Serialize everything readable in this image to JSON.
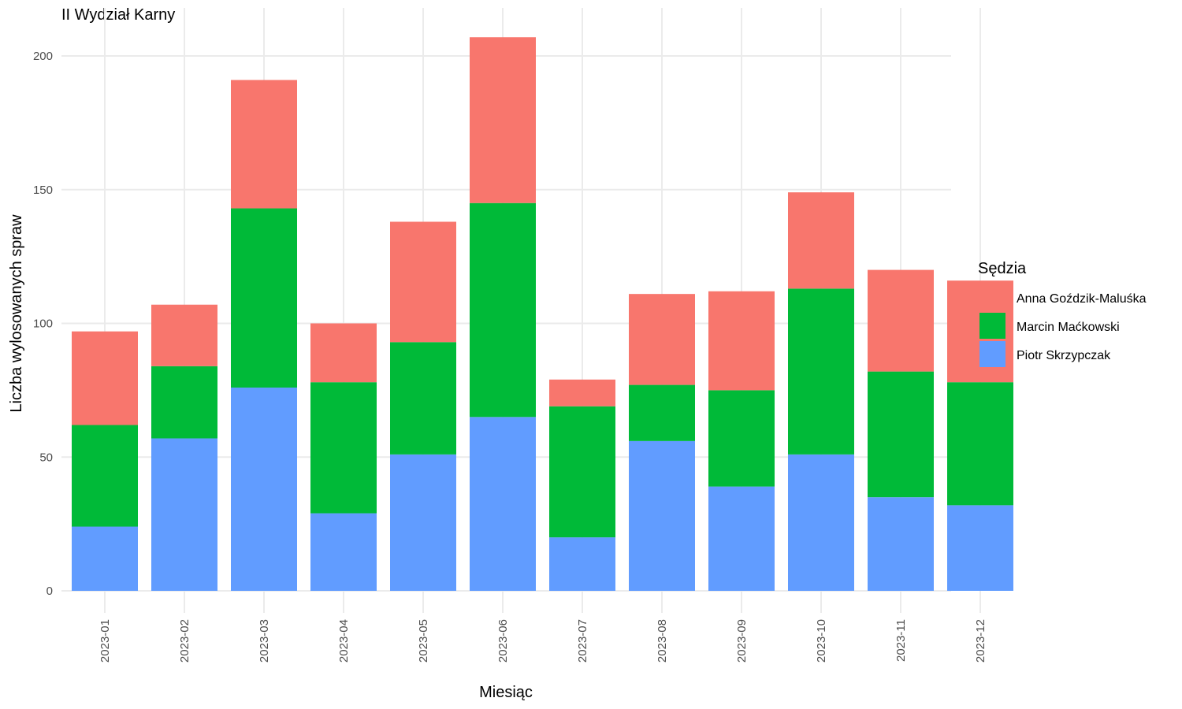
{
  "chart_data": {
    "type": "bar",
    "stacked": true,
    "title": "II Wydział Karny",
    "xlabel": "Miesiąc",
    "ylabel": "Liczba wylosowanych spraw",
    "ylim": [
      0,
      215
    ],
    "yticks": [
      0,
      50,
      100,
      150,
      200
    ],
    "grid": true,
    "legend_title": "Sędzia",
    "legend_position": "right",
    "categories": [
      "2023-01",
      "2023-02",
      "2023-03",
      "2023-04",
      "2023-05",
      "2023-06",
      "2023-07",
      "2023-08",
      "2023-09",
      "2023-10",
      "2023-11",
      "2023-12"
    ],
    "series": [
      {
        "name": "Piotr Skrzypczak",
        "color": "#619CFF",
        "values": [
          24,
          57,
          76,
          29,
          51,
          65,
          20,
          56,
          39,
          51,
          35,
          32
        ]
      },
      {
        "name": "Marcin Maćkowski",
        "color": "#00BA38",
        "values": [
          38,
          27,
          67,
          49,
          42,
          80,
          49,
          21,
          36,
          62,
          47,
          46
        ]
      },
      {
        "name": "Anna Goździk-Maluśka",
        "color": "#F8766D",
        "values": [
          35,
          23,
          48,
          22,
          45,
          62,
          10,
          34,
          37,
          36,
          38,
          38
        ]
      }
    ],
    "legend_order": [
      "Anna Goździk-Maluśka",
      "Marcin Maćkowski",
      "Piotr Skrzypczak"
    ]
  }
}
